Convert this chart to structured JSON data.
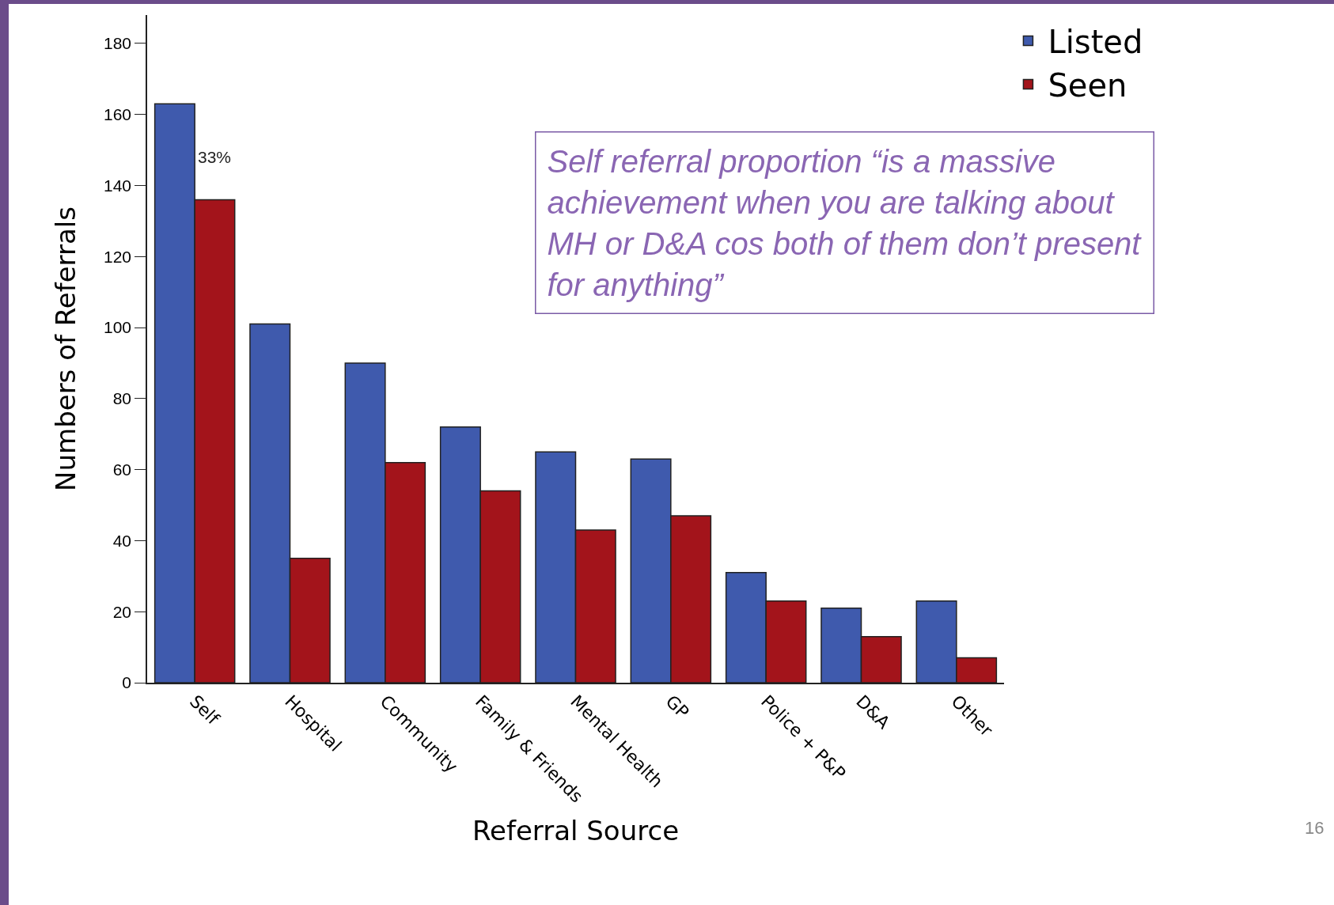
{
  "chart_data": {
    "type": "bar",
    "xlabel": "Referral Source",
    "ylabel": "Numbers of Referrals",
    "categories": [
      "Self",
      "Hospital",
      "Community",
      "Family & Friends",
      "Mental Health",
      "GP",
      "Police + P&P",
      "D&A",
      "Other"
    ],
    "series": [
      {
        "name": "Listed",
        "color": "#3f5aad",
        "values": [
          163,
          101,
          90,
          72,
          65,
          63,
          31,
          21,
          23
        ]
      },
      {
        "name": "Seen",
        "color": "#a3141b",
        "values": [
          136,
          35,
          62,
          54,
          43,
          47,
          23,
          13,
          7
        ]
      }
    ],
    "ylim": [
      0,
      188
    ],
    "yticks": [
      0,
      20,
      40,
      60,
      80,
      100,
      120,
      140,
      160,
      180
    ],
    "grid": false,
    "legend": "top right",
    "annotations": [
      {
        "text": "33%",
        "x": "Self",
        "y": 148
      },
      "Self referral proportion “is a massive\nachievement when you are talking about\nMH or D&A cos both of them don’t present\nfor anything”",
      "16"
    ]
  }
}
